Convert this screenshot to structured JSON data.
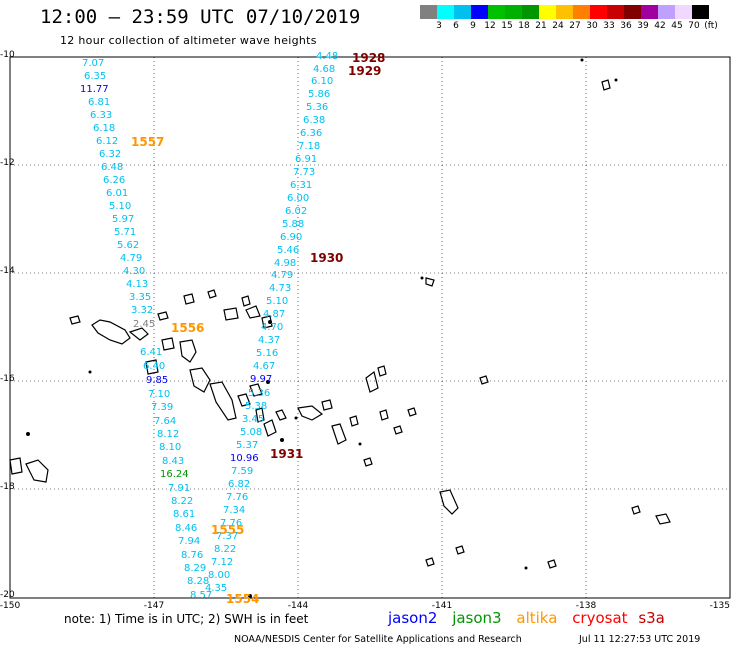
{
  "title": "12:00 – 23:59 UTC 07/10/2019",
  "subtitle": "12 hour collection of altimeter wave heights",
  "colorbar": {
    "colors": [
      "#808080",
      "#00ffff",
      "#00c0f0",
      "#0000ff",
      "#00c000",
      "#00b000",
      "#009600",
      "#ffff00",
      "#ffc000",
      "#ff8000",
      "#ff0000",
      "#c80000",
      "#800000",
      "#a000a0",
      "#c0a0ff",
      "#f0d8ff",
      "#000000"
    ],
    "labels": [
      "3",
      "6",
      "9",
      "12",
      "15",
      "18",
      "21",
      "24",
      "27",
      "30",
      "33",
      "36",
      "39",
      "42",
      "45",
      "70",
      "(ft)"
    ]
  },
  "axes": {
    "x_ticks": [
      "-150",
      "-147",
      "-144",
      "-141",
      "-138",
      "-135"
    ],
    "y_ticks": [
      "-10",
      "-12",
      "-14",
      "-16",
      "-18",
      "-20"
    ]
  },
  "legend": [
    {
      "name": "jason2",
      "color": "#0000ff"
    },
    {
      "name": "jason3",
      "color": "#009600"
    },
    {
      "name": "altika",
      "color": "#ff9600"
    },
    {
      "name": "cryosat",
      "color": "#ff0000"
    },
    {
      "name": "s3a",
      "color": "#c80000"
    }
  ],
  "note": "note: 1) Time is in UTC; 2) SWH is in feet",
  "footer_credit": "NOAA/NESDIS Center for Satellite Applications and Research",
  "footer_time": "Jul 11 12:27:53 UTC 2019",
  "track_labels": [
    {
      "text": "1557",
      "color": "#ff9600"
    },
    {
      "text": "1556",
      "color": "#ff9600"
    },
    {
      "text": "1555",
      "color": "#ff9600"
    },
    {
      "text": "1554",
      "color": "#ff9600"
    },
    {
      "text": "1928",
      "color": "#800000"
    },
    {
      "text": "1929",
      "color": "#800000"
    },
    {
      "text": "1930",
      "color": "#800000"
    },
    {
      "text": "1931",
      "color": "#800000"
    }
  ],
  "wave_values": [
    {
      "text": "7.07",
      "color": "#00c0f0"
    },
    {
      "text": "6.35",
      "color": "#00c0f0"
    },
    {
      "text": "11.77",
      "color": "#0000ff"
    },
    {
      "text": "6.81",
      "color": "#00c0f0"
    },
    {
      "text": "6.33",
      "color": "#00c0f0"
    },
    {
      "text": "6.18",
      "color": "#00c0f0"
    },
    {
      "text": "6.12",
      "color": "#00c0f0"
    },
    {
      "text": "6.32",
      "color": "#00c0f0"
    },
    {
      "text": "6.48",
      "color": "#00c0f0"
    },
    {
      "text": "6.26",
      "color": "#00c0f0"
    },
    {
      "text": "6.01",
      "color": "#00c0f0"
    },
    {
      "text": "5.10",
      "color": "#00c0f0"
    },
    {
      "text": "5.97",
      "color": "#00c0f0"
    },
    {
      "text": "5.71",
      "color": "#00c0f0"
    },
    {
      "text": "5.62",
      "color": "#00c0f0"
    },
    {
      "text": "4.79",
      "color": "#00c0f0"
    },
    {
      "text": "4.30",
      "color": "#00c0f0"
    },
    {
      "text": "4.13",
      "color": "#00c0f0"
    },
    {
      "text": "3.35",
      "color": "#00c0f0"
    },
    {
      "text": "3.32",
      "color": "#00c0f0"
    },
    {
      "text": "2.45",
      "color": "#808080"
    },
    {
      "text": "6.41",
      "color": "#00c0f0"
    },
    {
      "text": "6.40",
      "color": "#00c0f0"
    },
    {
      "text": "9.85",
      "color": "#0000ff"
    },
    {
      "text": "7.10",
      "color": "#00c0f0"
    },
    {
      "text": "7.39",
      "color": "#00c0f0"
    },
    {
      "text": "7.64",
      "color": "#00c0f0"
    },
    {
      "text": "8.12",
      "color": "#00c0f0"
    },
    {
      "text": "8.10",
      "color": "#00c0f0"
    },
    {
      "text": "8.43",
      "color": "#00c0f0"
    },
    {
      "text": "16.24",
      "color": "#009600"
    },
    {
      "text": "7.91",
      "color": "#00c0f0"
    },
    {
      "text": "8.22",
      "color": "#00c0f0"
    },
    {
      "text": "8.61",
      "color": "#00c0f0"
    },
    {
      "text": "8.46",
      "color": "#00c0f0"
    },
    {
      "text": "7.94",
      "color": "#00c0f0"
    },
    {
      "text": "8.76",
      "color": "#00c0f0"
    },
    {
      "text": "8.29",
      "color": "#00c0f0"
    },
    {
      "text": "8.28",
      "color": "#00c0f0"
    },
    {
      "text": "8.57",
      "color": "#00c0f0"
    },
    {
      "text": "4.48",
      "color": "#00c0f0"
    },
    {
      "text": "4.68",
      "color": "#00c0f0"
    },
    {
      "text": "6.10",
      "color": "#00c0f0"
    },
    {
      "text": "5.86",
      "color": "#00c0f0"
    },
    {
      "text": "5.36",
      "color": "#00c0f0"
    },
    {
      "text": "6.38",
      "color": "#00c0f0"
    },
    {
      "text": "6.36",
      "color": "#00c0f0"
    },
    {
      "text": "7.18",
      "color": "#00c0f0"
    },
    {
      "text": "6.91",
      "color": "#00c0f0"
    },
    {
      "text": "7.73",
      "color": "#00c0f0"
    },
    {
      "text": "6.31",
      "color": "#00c0f0"
    },
    {
      "text": "6.00",
      "color": "#00c0f0"
    },
    {
      "text": "6.02",
      "color": "#00c0f0"
    },
    {
      "text": "5.88",
      "color": "#00c0f0"
    },
    {
      "text": "6.90",
      "color": "#00c0f0"
    },
    {
      "text": "5.46",
      "color": "#00c0f0"
    },
    {
      "text": "4.98",
      "color": "#00c0f0"
    },
    {
      "text": "4.79",
      "color": "#00c0f0"
    },
    {
      "text": "4.73",
      "color": "#00c0f0"
    },
    {
      "text": "5.10",
      "color": "#00c0f0"
    },
    {
      "text": "4.87",
      "color": "#00c0f0"
    },
    {
      "text": "4.70",
      "color": "#00c0f0"
    },
    {
      "text": "4.37",
      "color": "#00c0f0"
    },
    {
      "text": "5.16",
      "color": "#00c0f0"
    },
    {
      "text": "4.67",
      "color": "#00c0f0"
    },
    {
      "text": "9.97",
      "color": "#0000ff"
    },
    {
      "text": "5.36",
      "color": "#00c0f0"
    },
    {
      "text": "5.38",
      "color": "#00c0f0"
    },
    {
      "text": "3.45",
      "color": "#00c0f0"
    },
    {
      "text": "5.08",
      "color": "#00c0f0"
    },
    {
      "text": "5.37",
      "color": "#00c0f0"
    },
    {
      "text": "10.96",
      "color": "#0000ff"
    },
    {
      "text": "7.59",
      "color": "#00c0f0"
    },
    {
      "text": "6.82",
      "color": "#00c0f0"
    },
    {
      "text": "7.76",
      "color": "#00c0f0"
    },
    {
      "text": "7.34",
      "color": "#00c0f0"
    },
    {
      "text": "7.76",
      "color": "#00c0f0"
    },
    {
      "text": "7.37",
      "color": "#00c0f0"
    },
    {
      "text": "8.22",
      "color": "#00c0f0"
    },
    {
      "text": "7.12",
      "color": "#00c0f0"
    },
    {
      "text": "8.00",
      "color": "#00c0f0"
    },
    {
      "text": "4.35",
      "color": "#00c0f0"
    }
  ]
}
